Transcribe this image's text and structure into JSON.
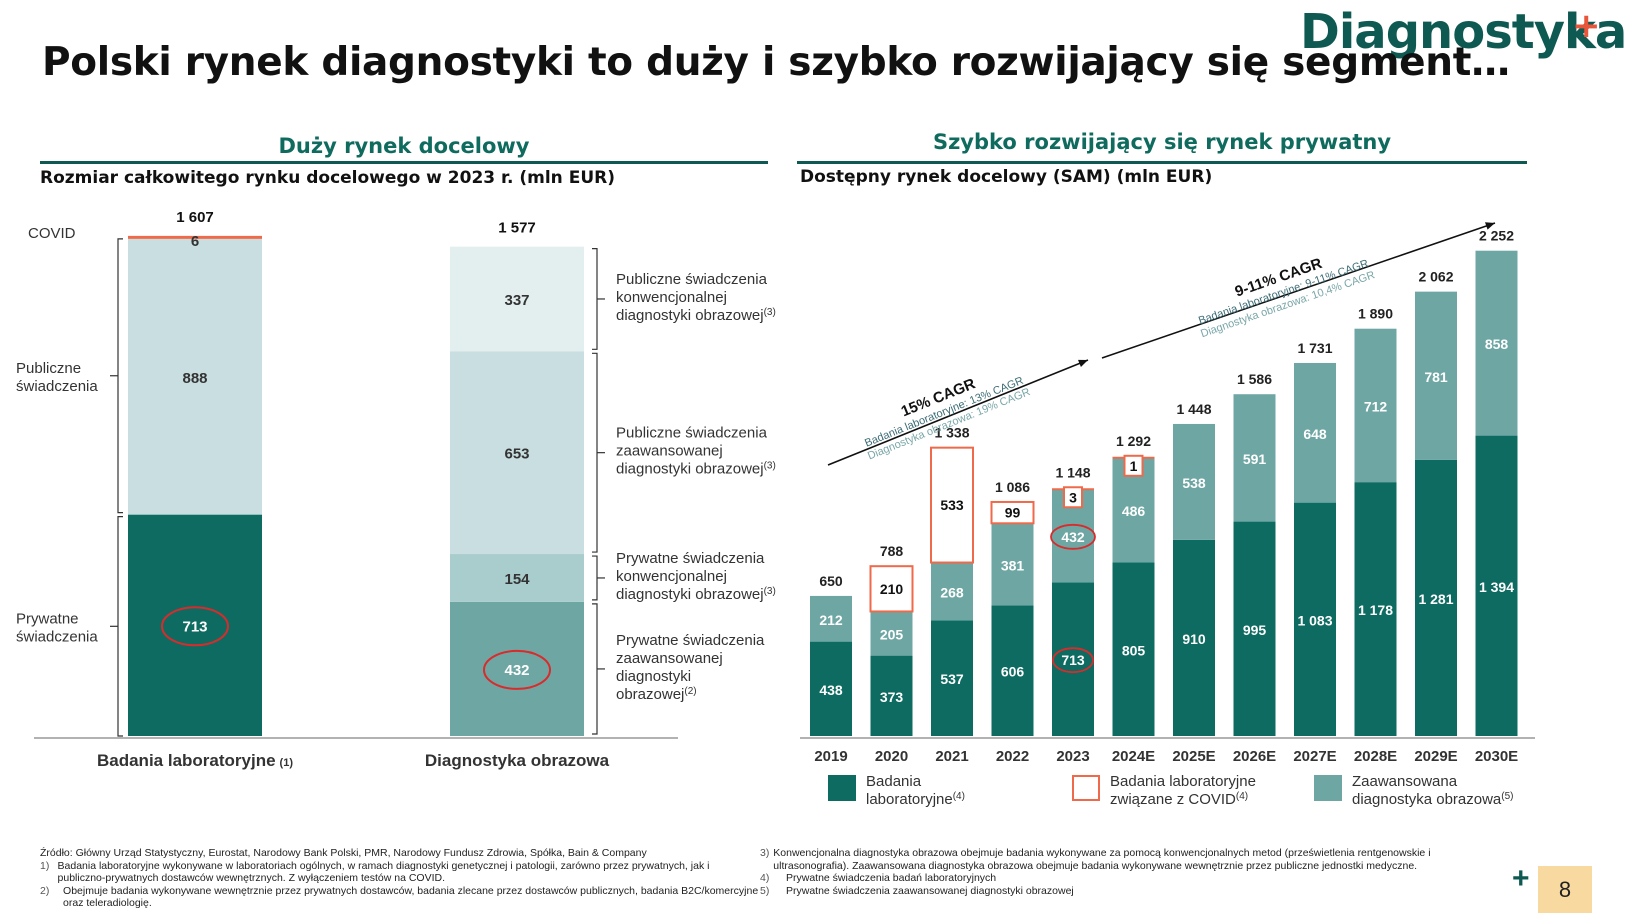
{
  "logo": {
    "text": "Diagnostyka",
    "plus": "+"
  },
  "title": "Polski rynek diagnostyki to duży i szybko rozwijający się segment…",
  "left": {
    "section_title": "Duży rynek docelowy",
    "subtitle": "Rozmiar całkowitego rynku docelowego w 2023 r. (mln EUR)"
  },
  "right": {
    "section_title": "Szybko rozwijający się rynek prywatny",
    "subtitle": "Dostępny rynek docelowy (SAM) (mln EUR)"
  },
  "chart_data": [
    {
      "type": "bar",
      "stacked": true,
      "categories": [
        "Badania laboratoryjne",
        "Diagnostyka obrazowa"
      ],
      "category_notes": [
        "(1)",
        ""
      ],
      "totals": [
        "1 607",
        "1 577"
      ],
      "stacks": [
        [
          {
            "value": 713,
            "label": "713",
            "color": "#0e6b62",
            "text_color": "#ffffff",
            "circled": true
          },
          {
            "value": 888,
            "label": "888",
            "color": "#c8dee0",
            "text_color": "#333333"
          },
          {
            "value": 6,
            "label": "6",
            "color": "#ef6a4a",
            "text_color": "#333333"
          }
        ],
        [
          {
            "value": 432,
            "label": "432",
            "color": "#6ea6a4",
            "text_color": "#ffffff",
            "circled": true
          },
          {
            "value": 154,
            "label": "154",
            "color": "#a9cccc",
            "text_color": "#333333"
          },
          {
            "value": 653,
            "label": "653",
            "color": "#c8dee0",
            "text_color": "#333333"
          },
          {
            "value": 337,
            "label": "337",
            "color": "#e3eeef",
            "text_color": "#333333"
          }
        ]
      ],
      "left_labels": [
        {
          "text": "COVID"
        },
        {
          "text": "Publiczne\nświadczenia"
        },
        {
          "text": "Prywatne\nświadczenia"
        }
      ],
      "right_labels": [
        {
          "text": "Publiczne świadczenia\nkonwencjonalnej\ndiagnostyki obrazowej",
          "note": "(3)"
        },
        {
          "text": "Publiczne świadczenia\nzaawansowanej\ndiagnostyki obrazowej",
          "note": "(3)"
        },
        {
          "text": "Prywatne świadczenia\nkonwencjonalnej\ndiagnostyki obrazowej",
          "note": "(3)"
        },
        {
          "text": "Prywatne świadczenia\nzaawansowanej\ndiagnostyki\nobrazowej",
          "note": "(2)"
        }
      ]
    },
    {
      "type": "bar",
      "stacked": true,
      "categories": [
        "2019",
        "2020",
        "2021",
        "2022",
        "2023",
        "2024E",
        "2025E",
        "2026E",
        "2027E",
        "2028E",
        "2029E",
        "2030E"
      ],
      "totals": [
        "650",
        "788",
        "1 338",
        "1 086",
        "1 148",
        "1 292",
        "1 448",
        "1 586",
        "1 731",
        "1 890",
        "2 062",
        "2 252"
      ],
      "series": [
        {
          "name": "Badania laboratoryjne",
          "note": "(4)",
          "color": "#0e6b62",
          "values": [
            438,
            373,
            537,
            606,
            713,
            805,
            910,
            995,
            1083,
            1178,
            1281,
            1394
          ],
          "labels": [
            "438",
            "373",
            "537",
            "606",
            "713",
            "805",
            "910",
            "995",
            "1 083",
            "1 178",
            "1 281",
            "1 394"
          ]
        },
        {
          "name": "Zaawansowana diagnostyka obrazowa",
          "note": "(5)",
          "color": "#6ea6a4",
          "values": [
            212,
            205,
            268,
            381,
            432,
            486,
            538,
            591,
            648,
            712,
            781,
            858
          ],
          "labels": [
            "212",
            "205",
            "268",
            "381",
            "432",
            "486",
            "538",
            "591",
            "648",
            "712",
            "781",
            "858"
          ]
        },
        {
          "name": "Badania laboratoryjne związane z COVID",
          "note": "(4)",
          "color": "#ffffff",
          "border": "#ef6a4a",
          "values": [
            0,
            210,
            533,
            99,
            3,
            1,
            0,
            0,
            0,
            0,
            0,
            0
          ],
          "labels": [
            "",
            "210",
            "533",
            "99",
            "3",
            "1",
            "",
            "",
            "",
            "",
            "",
            ""
          ]
        }
      ],
      "circled": [
        "713",
        "432"
      ],
      "annotations": [
        {
          "title": "15% CAGR",
          "line1": "Badania laboratoryjne: 13% CAGR",
          "line2": "Diagnostyka obrazowa: 19% CAGR"
        },
        {
          "title": "9-11% CAGR",
          "line1": "Badania laboratoryjne: 9-11% CAGR",
          "line2": "Diagnostyka obrazowa: 10,4% CAGR"
        }
      ],
      "legend": [
        {
          "line1": "Badania",
          "line2": "laboratoryjne",
          "note": "(4)",
          "color": "#0e6b62",
          "style": "fill"
        },
        {
          "line1": "Badania laboratoryjne",
          "line2": "związane z COVID",
          "note": "(4)",
          "color": "#ef6a4a",
          "style": "outline"
        },
        {
          "line1": "Zaawansowana",
          "line2": "diagnostyka obrazowa",
          "note": "(5)",
          "color": "#6ea6a4",
          "style": "fill"
        }
      ]
    }
  ],
  "footnotes": {
    "source": "Źródło: Główny Urząd Statystyczny, Eurostat, Narodowy Bank Polski, PMR, Narodowy Fundusz Zdrowia, Spółka, Bain & Company",
    "left": [
      {
        "n": "1)",
        "text": "Badania laboratoryjne wykonywane w laboratoriach ogólnych, w ramach diagnostyki genetycznej i patologii, zarówno przez prywatnych, jak i publiczno-prywatnych dostawców wewnętrznych.  Z wyłączeniem testów na COVID."
      },
      {
        "n": "2)",
        "text": "Obejmuje badania wykonywane wewnętrznie przez prywatnych dostawców, badania zlecane przez dostawców publicznych, badania B2C/komercyjne oraz teleradiologię."
      }
    ],
    "right": [
      {
        "n": "3)",
        "text": "Konwencjonalna diagnostyka obrazowa obejmuje badania wykonywane za pomocą konwencjonalnych metod (prześwietlenia rentgenowskie i ultrasonografia). Zaawansowana diagnostyka obrazowa obejmuje badania wykonywane wewnętrznie przez publiczne jednostki medyczne."
      },
      {
        "n": "4)",
        "text": "Prywatne świadczenia badań laboratoryjnych"
      },
      {
        "n": "5)",
        "text": "Prywatne świadczenia zaawansowanej diagnostyki obrazowej"
      }
    ]
  },
  "page_number": "8",
  "page_plus": "+"
}
